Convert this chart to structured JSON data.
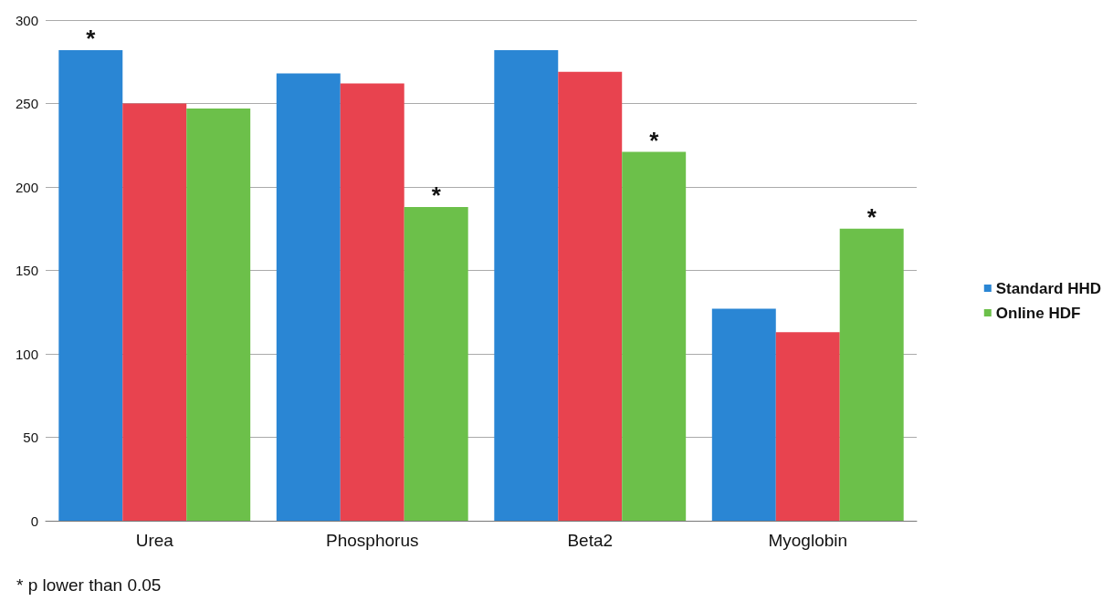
{
  "chart_data": {
    "type": "bar",
    "categories": [
      "Urea",
      "Phosphorus",
      "Beta2",
      "Myoglobin"
    ],
    "series": [
      {
        "name": "Standard HHD",
        "color": "#2a86d4",
        "values": [
          282,
          268,
          282,
          127
        ],
        "value_labels": [
          "*",
          null,
          null,
          null
        ]
      },
      {
        "color": "#e8434f",
        "values": [
          250,
          262,
          269,
          113
        ]
      },
      {
        "name": "Online HDF",
        "color": "#6cc04a",
        "values": [
          247,
          188,
          221,
          175
        ],
        "value_labels": [
          null,
          "*",
          "*",
          "*"
        ]
      }
    ],
    "ylim": [
      0,
      300
    ],
    "yticks": [
      0,
      50,
      100,
      150,
      200,
      250,
      300
    ],
    "grid": "y",
    "legend": "right",
    "annotations": [
      "* p lower than 0.05"
    ]
  }
}
